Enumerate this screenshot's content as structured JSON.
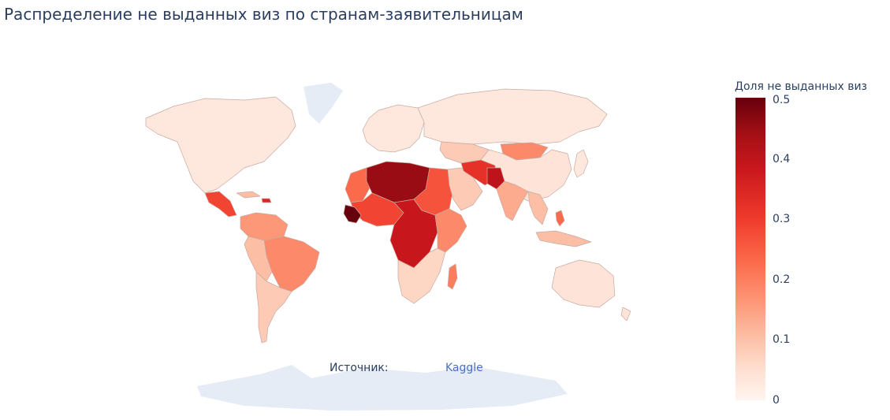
{
  "title": "Распределение не выданных виз по странам-заявительницам",
  "source": {
    "label": "Источник:",
    "link_text": "Kaggle"
  },
  "colorbar": {
    "title": "Доля не выданных виз",
    "ticks": [
      "0.5",
      "0.4",
      "0.3",
      "0.2",
      "0.1",
      "0"
    ],
    "range": [
      0,
      0.5
    ],
    "colors": [
      "#fff5f0",
      "#fee0d2",
      "#fcbba1",
      "#fc9272",
      "#fb6a4a",
      "#ef3b2c",
      "#cb181d",
      "#a50f15",
      "#67000d"
    ]
  },
  "map": {
    "type": "choropleth",
    "projection": "natural-earth",
    "no_data_color": "#e5ecf6",
    "border_color": "#c8a9a0",
    "regions": [
      {
        "id": "north-america",
        "value": 0.04
      },
      {
        "id": "greenland",
        "value": null
      },
      {
        "id": "central-america",
        "value": 0.3
      },
      {
        "id": "cuba",
        "value": 0.12
      },
      {
        "id": "haiti",
        "value": 0.35
      },
      {
        "id": "colombia-venezuela",
        "value": 0.18
      },
      {
        "id": "brazil",
        "value": 0.2
      },
      {
        "id": "andes",
        "value": 0.12
      },
      {
        "id": "southern-cone",
        "value": 0.1
      },
      {
        "id": "europe",
        "value": 0.04
      },
      {
        "id": "russia",
        "value": 0.04
      },
      {
        "id": "mongolia",
        "value": 0.2
      },
      {
        "id": "china",
        "value": 0.05
      },
      {
        "id": "north-africa-west",
        "value": 0.25
      },
      {
        "id": "algeria-libya",
        "value": 0.45
      },
      {
        "id": "egypt-sudan",
        "value": 0.28
      },
      {
        "id": "west-africa",
        "value": 0.3
      },
      {
        "id": "guinea",
        "value": 0.5
      },
      {
        "id": "central-africa",
        "value": 0.38
      },
      {
        "id": "horn-of-africa",
        "value": 0.2
      },
      {
        "id": "southern-africa",
        "value": 0.08
      },
      {
        "id": "madagascar",
        "value": 0.22
      },
      {
        "id": "arabia",
        "value": 0.1
      },
      {
        "id": "iran-afghanistan",
        "value": 0.33
      },
      {
        "id": "pakistan",
        "value": 0.4
      },
      {
        "id": "central-asia",
        "value": 0.1
      },
      {
        "id": "india",
        "value": 0.15
      },
      {
        "id": "southeast-asia",
        "value": 0.12
      },
      {
        "id": "philippines",
        "value": 0.25
      },
      {
        "id": "indonesia",
        "value": 0.12
      },
      {
        "id": "australia",
        "value": 0.05
      },
      {
        "id": "new-zealand",
        "value": 0.05
      },
      {
        "id": "japan",
        "value": 0.04
      },
      {
        "id": "antarctica",
        "value": null
      }
    ]
  }
}
